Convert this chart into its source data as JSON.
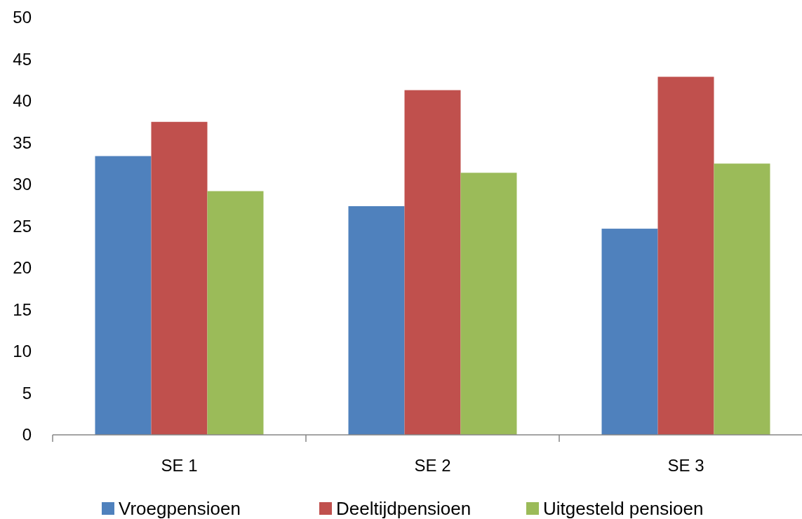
{
  "chart_data": {
    "type": "bar",
    "categories": [
      "SE 1",
      "SE 2",
      "SE 3"
    ],
    "series": [
      {
        "name": "Vroegpensioen",
        "color": "#4f81bd",
        "values": [
          33.4,
          27.4,
          24.7
        ]
      },
      {
        "name": "Deeltijdpensioen",
        "color": "#c0504d",
        "values": [
          37.5,
          41.3,
          42.9
        ]
      },
      {
        "name": "Uitgesteld pensioen",
        "color": "#9bbb59",
        "values": [
          29.2,
          31.4,
          32.5
        ]
      }
    ],
    "ylim": [
      0,
      50
    ],
    "yticks": [
      0,
      5,
      10,
      15,
      20,
      25,
      30,
      35,
      40,
      45,
      50
    ],
    "grid": false,
    "legend": "bottom"
  }
}
